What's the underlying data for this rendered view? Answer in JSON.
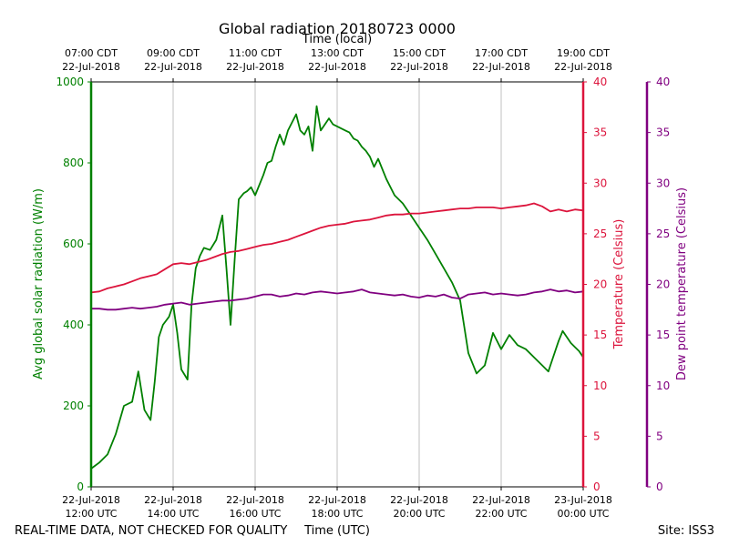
{
  "chart_data": {
    "type": "line",
    "title": "Global radiation 20180723 0000",
    "top_axis_label": "Time (local)",
    "xlabel": "Time (UTC)",
    "footer_left": "REAL-TIME DATA, NOT CHECKED FOR QUALITY",
    "footer_right": "Site: ISS3",
    "x_range_hours_utc": [
      12,
      24
    ],
    "bottom_ticks": [
      {
        "hour": 12,
        "line1": "22-Jul-2018",
        "line2": "12:00 UTC"
      },
      {
        "hour": 14,
        "line1": "22-Jul-2018",
        "line2": "14:00 UTC"
      },
      {
        "hour": 16,
        "line1": "22-Jul-2018",
        "line2": "16:00 UTC"
      },
      {
        "hour": 18,
        "line1": "22-Jul-2018",
        "line2": "18:00 UTC"
      },
      {
        "hour": 20,
        "line1": "22-Jul-2018",
        "line2": "20:00 UTC"
      },
      {
        "hour": 22,
        "line1": "22-Jul-2018",
        "line2": "22:00 UTC"
      },
      {
        "hour": 24,
        "line1": "23-Jul-2018",
        "line2": "00:00 UTC"
      }
    ],
    "top_ticks": [
      {
        "hour": 12,
        "line1": "07:00 CDT",
        "line2": "22-Jul-2018"
      },
      {
        "hour": 14,
        "line1": "09:00 CDT",
        "line2": "22-Jul-2018"
      },
      {
        "hour": 16,
        "line1": "11:00 CDT",
        "line2": "22-Jul-2018"
      },
      {
        "hour": 18,
        "line1": "13:00 CDT",
        "line2": "22-Jul-2018"
      },
      {
        "hour": 20,
        "line1": "15:00 CDT",
        "line2": "22-Jul-2018"
      },
      {
        "hour": 22,
        "line1": "17:00 CDT",
        "line2": "22-Jul-2018"
      },
      {
        "hour": 24,
        "line1": "19:00 CDT",
        "line2": "22-Jul-2018"
      }
    ],
    "axes": [
      {
        "id": "radiation",
        "label": "Avg global solar radiation (W/m)",
        "ylim": [
          0,
          1000
        ],
        "ticks": [
          "0",
          "200",
          "400",
          "600",
          "800",
          "1000"
        ],
        "color": "#008000"
      },
      {
        "id": "temperature",
        "label": "Temperature (Celsius)",
        "ylim": [
          0,
          40
        ],
        "ticks": [
          "0",
          "5",
          "10",
          "15",
          "20",
          "25",
          "30",
          "35",
          "40"
        ],
        "color": "#dc143c"
      },
      {
        "id": "dewpoint",
        "label": "Dew point temperature (Celsius)",
        "ylim": [
          0,
          40
        ],
        "ticks": [
          "0",
          "5",
          "10",
          "15",
          "20",
          "25",
          "30",
          "35",
          "40"
        ],
        "color": "#800080"
      }
    ],
    "series": [
      {
        "name": "Avg global solar radiation",
        "axis": "radiation",
        "color": "#008000",
        "x": [
          12.0,
          12.2,
          12.4,
          12.6,
          12.8,
          13.0,
          13.15,
          13.3,
          13.45,
          13.55,
          13.65,
          13.75,
          13.9,
          14.0,
          14.1,
          14.2,
          14.35,
          14.45,
          14.55,
          14.65,
          14.75,
          14.9,
          15.05,
          15.2,
          15.3,
          15.4,
          15.5,
          15.6,
          15.72,
          15.8,
          15.9,
          16.0,
          16.1,
          16.2,
          16.3,
          16.4,
          16.5,
          16.6,
          16.7,
          16.8,
          16.9,
          17.0,
          17.1,
          17.2,
          17.3,
          17.4,
          17.5,
          17.6,
          17.7,
          17.8,
          17.9,
          18.0,
          18.1,
          18.2,
          18.3,
          18.4,
          18.5,
          18.6,
          18.7,
          18.8,
          18.9,
          19.0,
          19.2,
          19.4,
          19.6,
          19.8,
          20.0,
          20.2,
          20.4,
          20.6,
          20.8,
          21.0,
          21.2,
          21.4,
          21.6,
          21.8,
          22.0,
          22.2,
          22.4,
          22.6,
          22.8,
          23.0,
          23.1,
          23.15,
          23.2,
          23.3,
          23.4,
          23.5,
          23.6,
          23.7,
          23.8,
          23.9,
          24.0
        ],
        "y": [
          45,
          60,
          80,
          130,
          200,
          210,
          285,
          190,
          165,
          260,
          370,
          400,
          420,
          450,
          380,
          290,
          265,
          450,
          540,
          570,
          590,
          585,
          610,
          670,
          540,
          400,
          560,
          710,
          725,
          730,
          740,
          720,
          745,
          770,
          800,
          805,
          840,
          870,
          845,
          880,
          900,
          920,
          880,
          870,
          890,
          830,
          940,
          880,
          895,
          910,
          895,
          890,
          885,
          880,
          875,
          860,
          855,
          840,
          830,
          815,
          790,
          810,
          760,
          720,
          700,
          670,
          640,
          610,
          575,
          540,
          505,
          460,
          330,
          280,
          300,
          380,
          340,
          375,
          350,
          340,
          320,
          300,
          290,
          285,
          300,
          330,
          360,
          385,
          370,
          355,
          345,
          335,
          320
        ]
      },
      {
        "name": "Temperature",
        "axis": "temperature",
        "color": "#dc143c",
        "x": [
          12.0,
          12.2,
          12.4,
          12.6,
          12.8,
          13.0,
          13.2,
          13.4,
          13.6,
          13.8,
          14.0,
          14.2,
          14.4,
          14.6,
          14.8,
          15.0,
          15.2,
          15.4,
          15.6,
          15.8,
          16.0,
          16.2,
          16.4,
          16.6,
          16.8,
          17.0,
          17.2,
          17.4,
          17.6,
          17.8,
          18.0,
          18.2,
          18.4,
          18.6,
          18.8,
          19.0,
          19.2,
          19.4,
          19.6,
          19.8,
          20.0,
          20.2,
          20.4,
          20.6,
          20.8,
          21.0,
          21.2,
          21.4,
          21.6,
          21.8,
          22.0,
          22.2,
          22.4,
          22.6,
          22.8,
          23.0,
          23.2,
          23.4,
          23.6,
          23.8,
          24.0
        ],
        "y": [
          19.2,
          19.3,
          19.6,
          19.8,
          20.0,
          20.3,
          20.6,
          20.8,
          21.0,
          21.5,
          22.0,
          22.1,
          22.0,
          22.2,
          22.4,
          22.7,
          23.0,
          23.2,
          23.3,
          23.5,
          23.7,
          23.9,
          24.0,
          24.2,
          24.4,
          24.7,
          25.0,
          25.3,
          25.6,
          25.8,
          25.9,
          26.0,
          26.2,
          26.3,
          26.4,
          26.6,
          26.8,
          26.9,
          26.9,
          27.0,
          27.0,
          27.1,
          27.2,
          27.3,
          27.4,
          27.5,
          27.5,
          27.6,
          27.6,
          27.6,
          27.5,
          27.6,
          27.7,
          27.8,
          28.0,
          27.7,
          27.2,
          27.4,
          27.2,
          27.4,
          27.3
        ]
      },
      {
        "name": "Dew point temperature",
        "axis": "dewpoint",
        "color": "#800080",
        "x": [
          12.0,
          12.2,
          12.4,
          12.6,
          12.8,
          13.0,
          13.2,
          13.4,
          13.6,
          13.8,
          14.0,
          14.2,
          14.4,
          14.6,
          14.8,
          15.0,
          15.2,
          15.4,
          15.6,
          15.8,
          16.0,
          16.2,
          16.4,
          16.6,
          16.8,
          17.0,
          17.2,
          17.4,
          17.6,
          17.8,
          18.0,
          18.2,
          18.4,
          18.6,
          18.8,
          19.0,
          19.2,
          19.4,
          19.6,
          19.8,
          20.0,
          20.2,
          20.4,
          20.6,
          20.8,
          21.0,
          21.2,
          21.4,
          21.6,
          21.8,
          22.0,
          22.2,
          22.4,
          22.6,
          22.8,
          23.0,
          23.2,
          23.4,
          23.6,
          23.8,
          24.0
        ],
        "y": [
          17.6,
          17.6,
          17.5,
          17.5,
          17.6,
          17.7,
          17.6,
          17.7,
          17.8,
          18.0,
          18.1,
          18.2,
          18.0,
          18.1,
          18.2,
          18.3,
          18.4,
          18.4,
          18.5,
          18.6,
          18.8,
          19.0,
          19.0,
          18.8,
          18.9,
          19.1,
          19.0,
          19.2,
          19.3,
          19.2,
          19.1,
          19.2,
          19.3,
          19.5,
          19.2,
          19.1,
          19.0,
          18.9,
          19.0,
          18.8,
          18.7,
          18.9,
          18.8,
          19.0,
          18.7,
          18.6,
          19.0,
          19.1,
          19.2,
          19.0,
          19.1,
          19.0,
          18.9,
          19.0,
          19.2,
          19.3,
          19.5,
          19.3,
          19.4,
          19.2,
          19.3
        ]
      }
    ]
  }
}
